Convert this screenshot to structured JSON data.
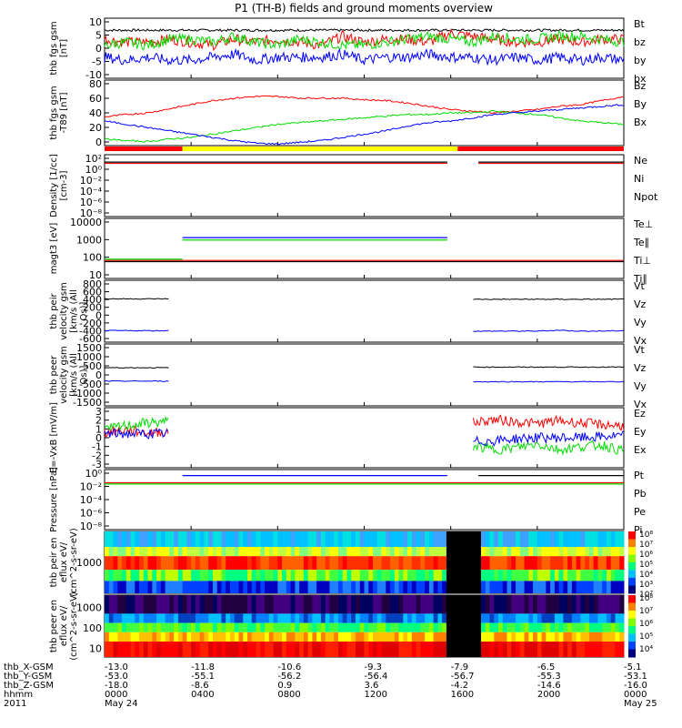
{
  "title": "P1 (TH-B) fields and ground moments overview",
  "colors": {
    "black": "#000000",
    "red": "#ff0000",
    "green": "#00dd00",
    "blue": "#0000ff",
    "yellow": "#ffff00"
  },
  "chart_data": [
    {
      "id": "fgs",
      "type": "line",
      "ylabel": "thb fgs gsm [nT]",
      "ylim": [
        -10,
        10
      ],
      "ticks": [
        "10",
        "5",
        "0",
        "-5",
        "-10"
      ],
      "legend": [
        {
          "label": "Bt",
          "color": "#000000"
        },
        {
          "label": "bz",
          "color": "#ff0000"
        },
        {
          "label": "by",
          "color": "#00dd00"
        },
        {
          "label": "bx",
          "color": "#0000ff"
        }
      ],
      "series": [
        {
          "name": "Bt",
          "values": [
            6,
            6,
            6,
            6,
            6,
            6,
            6,
            6,
            6,
            6,
            6,
            6,
            6,
            6,
            6,
            6,
            6,
            6,
            6,
            6,
            6,
            6,
            6,
            6,
            6
          ]
        },
        {
          "name": "bz",
          "values": [
            3,
            2,
            2,
            3,
            2,
            1,
            3,
            2,
            3,
            2,
            1,
            4,
            2,
            3,
            3,
            2,
            5,
            4,
            3,
            2,
            2,
            3,
            2,
            3,
            3
          ]
        },
        {
          "name": "by",
          "values": [
            1,
            2,
            1,
            3,
            3,
            2,
            4,
            2,
            1,
            3,
            2,
            1,
            1,
            2,
            3,
            4,
            3,
            2,
            4,
            3,
            3,
            4,
            4,
            3,
            2
          ]
        },
        {
          "name": "bx",
          "values": [
            -3,
            -4,
            -3,
            -4,
            -4,
            -3,
            -2,
            -4,
            -3,
            -3,
            -3,
            -2,
            -4,
            -3,
            -3,
            -2,
            -3,
            -3,
            -4,
            -3,
            -4,
            -3,
            -4,
            -3,
            -4
          ]
        }
      ]
    },
    {
      "id": "fgs_smoothed",
      "type": "line",
      "ylabel": "thb fgs gsm -T89 [nT]",
      "ylim": [
        0,
        80
      ],
      "ticks": [
        "80",
        "60",
        "40",
        "20",
        "0"
      ],
      "legend": [
        {
          "label": "Bz",
          "color": "#ff0000"
        },
        {
          "label": "By",
          "color": "#00dd00"
        },
        {
          "label": "Bx",
          "color": "#0000ff"
        }
      ],
      "series": [
        {
          "name": "Bz",
          "values": [
            35,
            38,
            40,
            45,
            50,
            55,
            58,
            60,
            60,
            58,
            58,
            58,
            56,
            55,
            52,
            48,
            44,
            42,
            40,
            42,
            44,
            48,
            50,
            55,
            60
          ]
        },
        {
          "name": "By",
          "values": [
            8,
            6,
            5,
            8,
            10,
            14,
            18,
            22,
            26,
            28,
            30,
            32,
            34,
            36,
            38,
            38,
            40,
            40,
            42,
            40,
            38,
            34,
            30,
            28,
            26
          ]
        },
        {
          "name": "Bx",
          "values": [
            30,
            26,
            22,
            18,
            14,
            10,
            6,
            3,
            2,
            4,
            6,
            10,
            14,
            18,
            24,
            28,
            30,
            34,
            38,
            40,
            42,
            44,
            46,
            48,
            50
          ]
        }
      ]
    },
    {
      "id": "density",
      "type": "line",
      "ylabel": "Density [1/cc] [cm-3]",
      "ylim": [
        "1e-8",
        "1e2"
      ],
      "ticks": [
        "10²",
        "10⁰",
        "10⁻²",
        "10⁻⁴",
        "10⁻⁶",
        "10⁻⁸"
      ],
      "legend": [
        {
          "label": "Ne",
          "color": "#ff0000"
        },
        {
          "label": "Ni",
          "color": "#000000"
        },
        {
          "label": "Npot",
          "color": "#0000ff"
        }
      ],
      "series": [
        {
          "name": "Ni",
          "values": [
            0.2,
            0.2,
            0.2,
            0.2,
            0.2,
            0.2,
            0.2,
            0.2,
            0.2,
            0.2,
            0.2,
            0.2,
            0.2,
            0.2,
            0.2,
            0.2,
            0.2,
            0.2,
            0.2,
            0.2,
            0.2,
            0.2,
            0.2,
            0.2,
            0.2
          ]
        }
      ]
    },
    {
      "id": "temperature",
      "type": "line",
      "ylabel": "magt3 [eV]",
      "ylim": [
        1,
        10000
      ],
      "ticks": [
        "10000",
        "1000",
        "100",
        "10"
      ],
      "legend": [
        {
          "label": "Te⊥",
          "color": "#ff0000"
        },
        {
          "label": "Te∥",
          "color": "#000000"
        },
        {
          "label": "Ti⊥",
          "color": "#0000ff"
        },
        {
          "label": "Ti∥",
          "color": "#00dd00"
        }
      ],
      "series": [
        {
          "name": "Ti",
          "values": [
            30,
            30,
            30,
            900,
            900,
            900,
            900,
            900,
            900,
            900,
            900,
            900,
            900,
            900,
            900,
            900,
            900,
            30,
            25,
            25,
            25,
            25,
            25,
            25,
            25
          ]
        },
        {
          "name": "Te",
          "values": [
            20,
            20,
            20,
            20,
            20,
            20,
            20,
            20,
            20,
            20,
            20,
            20,
            20,
            20,
            20,
            20,
            20,
            20,
            20,
            20,
            20,
            20,
            20,
            20,
            20
          ]
        }
      ]
    },
    {
      "id": "peir_velocity",
      "type": "line",
      "ylabel": "thb peir velocity gsm [km/s (All Qs)]",
      "ylim": [
        -600,
        800
      ],
      "ticks": [
        "800",
        "600",
        "400",
        "200",
        "0",
        "-200",
        "-400",
        "-600"
      ],
      "legend": [
        {
          "label": "Vt",
          "color": "#000000"
        },
        {
          "label": "Vz",
          "color": "#ff0000"
        },
        {
          "label": "Vy",
          "color": "#00dd00"
        },
        {
          "label": "Vx",
          "color": "#0000ff"
        }
      ],
      "series": [
        {
          "name": "Vt",
          "values": [
            380,
            380,
            380,
            380,
            null,
            null,
            null,
            null,
            null,
            null,
            null,
            null,
            null,
            null,
            null,
            null,
            null,
            370,
            370,
            370,
            370,
            370,
            370,
            370,
            370
          ]
        },
        {
          "name": "Vx",
          "values": [
            -340,
            -340,
            -340,
            -340,
            null,
            null,
            null,
            null,
            null,
            null,
            null,
            null,
            null,
            null,
            null,
            null,
            null,
            -350,
            -350,
            -350,
            -350,
            -330,
            -350,
            -350,
            -340
          ]
        }
      ]
    },
    {
      "id": "peer_velocity",
      "type": "line",
      "ylabel": "thb peer velocity gsm [km/s (All Qs)]",
      "ylim": [
        -1500,
        1500
      ],
      "ticks": [
        "1500",
        "1000",
        "500",
        "0",
        "-500",
        "-1000",
        "-1500"
      ],
      "legend": [
        {
          "label": "Vt",
          "color": "#000000"
        },
        {
          "label": "Vz",
          "color": "#ff0000"
        },
        {
          "label": "Vy",
          "color": "#00dd00"
        },
        {
          "label": "Vx",
          "color": "#0000ff"
        }
      ],
      "series": [
        {
          "name": "Vt",
          "values": [
            350,
            350,
            350,
            350,
            null,
            null,
            null,
            null,
            null,
            null,
            null,
            null,
            null,
            null,
            null,
            null,
            null,
            380,
            380,
            380,
            380,
            380,
            380,
            380,
            380
          ]
        },
        {
          "name": "Vx",
          "values": [
            -300,
            -300,
            -300,
            -300,
            null,
            null,
            null,
            null,
            null,
            null,
            null,
            null,
            null,
            null,
            null,
            null,
            null,
            -330,
            -330,
            -330,
            -330,
            -330,
            -330,
            -330,
            -330
          ]
        }
      ]
    },
    {
      "id": "efield",
      "type": "line",
      "ylabel": "E=-VxB [mV/m]",
      "ylim": [
        -3,
        3
      ],
      "ticks": [
        "3",
        "2",
        "1",
        "0",
        "-1",
        "-2",
        "-3"
      ],
      "legend": [
        {
          "label": "Ez",
          "color": "#ff0000"
        },
        {
          "label": "Ey",
          "color": "#00dd00"
        },
        {
          "label": "Ex",
          "color": "#0000ff"
        }
      ],
      "series": [
        {
          "name": "Ez",
          "values": [
            0.5,
            0.8,
            0.5,
            0.6,
            null,
            null,
            null,
            null,
            null,
            null,
            null,
            null,
            null,
            null,
            null,
            null,
            null,
            1.5,
            1.8,
            1.6,
            1.4,
            1.7,
            1.5,
            1.3,
            1.2
          ]
        },
        {
          "name": "Ey",
          "values": [
            0.8,
            1.2,
            1.5,
            1.6,
            null,
            null,
            null,
            null,
            null,
            null,
            null,
            null,
            null,
            null,
            null,
            null,
            null,
            -0.8,
            -1.2,
            -1.0,
            -0.6,
            -1.2,
            -0.9,
            -0.7,
            -1.4
          ]
        },
        {
          "name": "Ex",
          "values": [
            0.4,
            0.4,
            0.4,
            0.4,
            null,
            null,
            null,
            null,
            null,
            null,
            null,
            null,
            null,
            null,
            null,
            null,
            null,
            -0.4,
            -0.3,
            -0.1,
            0.0,
            0.0,
            0.0,
            0.1,
            0.2
          ]
        }
      ]
    },
    {
      "id": "pressure",
      "type": "line",
      "ylabel": "Pressure [nPa]",
      "ylim": [
        "1e-8",
        "1e0"
      ],
      "ticks": [
        "10⁰",
        "10⁻²",
        "10⁻⁴",
        "10⁻⁶",
        "10⁻⁸"
      ],
      "legend": [
        {
          "label": "Pt",
          "color": "#000000"
        },
        {
          "label": "Pb",
          "color": "#ff0000"
        },
        {
          "label": "Pe",
          "color": "#00dd00"
        },
        {
          "label": "Pi",
          "color": "#0000ff"
        }
      ]
    },
    {
      "id": "peir_eflux",
      "type": "heatmap",
      "ylabel": "thb peir en eflux eV/ (cm^2-s-sr-eV)",
      "ticks": [
        "1000"
      ]
    },
    {
      "id": "peer_eflux",
      "type": "heatmap",
      "ylabel": "thb peer en eflux eV/ (cm^2-s-sr-eV)",
      "ticks": [
        "1000",
        "100",
        "10"
      ]
    }
  ],
  "colorbar_labels": [
    "10⁸",
    "10⁷",
    "10⁶",
    "10⁵",
    "10⁴",
    "10³",
    "10²",
    "10⁸",
    "10⁷",
    "10⁶",
    "10⁵",
    "10⁴"
  ],
  "footer": {
    "rows": [
      {
        "label": "thb_X-GSM",
        "values": [
          "-13.0",
          "-11.8",
          "-10.6",
          "-9.3",
          "-7.9",
          "-6.5",
          "-5.1"
        ]
      },
      {
        "label": "thb_Y-GSM",
        "values": [
          "-53.0",
          "-55.1",
          "-56.2",
          "-56.4",
          "-56.7",
          "-55.3",
          "-53.1"
        ]
      },
      {
        "label": "thb_Z-GSM",
        "values": [
          "-18.0",
          "-8.6",
          "0.9",
          "3.6",
          "-4.2",
          "-14.6",
          "-16.0"
        ]
      },
      {
        "label": "hhmm",
        "values": [
          "0000",
          "0400",
          "0800",
          "1200",
          "1600",
          "2000",
          "0000"
        ]
      },
      {
        "label": "2011",
        "values": [
          "May 24",
          "",
          "",
          "",
          "",
          "",
          "May 25"
        ]
      }
    ]
  }
}
